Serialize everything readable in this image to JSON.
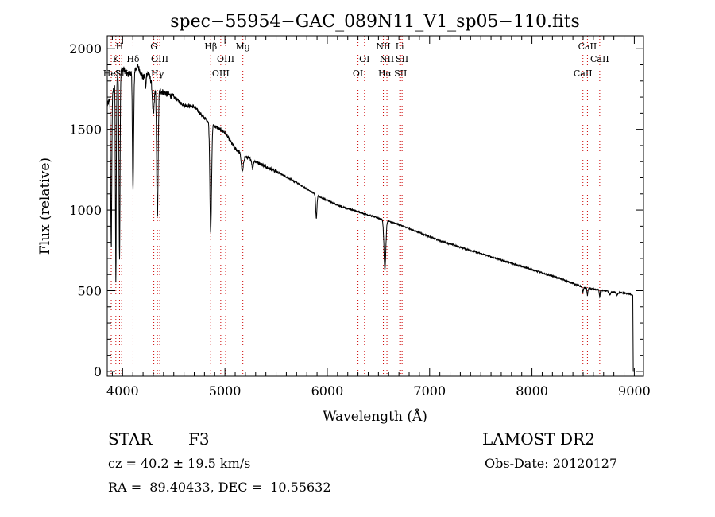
{
  "chart_data": {
    "type": "line",
    "title": "spec−55954−GAC_089N11_V1_sp05−110.fits",
    "xlabel": "Wavelength (Å)",
    "ylabel": "Flux (relative)",
    "xlim": [
      3850,
      9090
    ],
    "ylim": [
      -30,
      2080
    ],
    "xticks": [
      4000,
      5000,
      6000,
      7000,
      8000,
      9000
    ],
    "yticks": [
      0,
      500,
      1000,
      1500,
      2000
    ],
    "series_color": "#000000",
    "line_marker_color": "#cc0000",
    "continuum": [
      [
        3850,
        1650
      ],
      [
        3900,
        1720
      ],
      [
        3950,
        1830
      ],
      [
        4000,
        1880
      ],
      [
        4050,
        1840
      ],
      [
        4100,
        1860
      ],
      [
        4150,
        1890
      ],
      [
        4200,
        1820
      ],
      [
        4250,
        1850
      ],
      [
        4300,
        1760
      ],
      [
        4400,
        1730
      ],
      [
        4500,
        1700
      ],
      [
        4600,
        1650
      ],
      [
        4700,
        1640
      ],
      [
        4800,
        1570
      ],
      [
        4900,
        1520
      ],
      [
        5000,
        1480
      ],
      [
        5100,
        1380
      ],
      [
        5200,
        1330
      ],
      [
        5300,
        1300
      ],
      [
        5500,
        1240
      ],
      [
        5700,
        1170
      ],
      [
        5900,
        1090
      ],
      [
        6100,
        1030
      ],
      [
        6300,
        990
      ],
      [
        6500,
        950
      ],
      [
        6700,
        910
      ],
      [
        6900,
        860
      ],
      [
        7100,
        810
      ],
      [
        7300,
        770
      ],
      [
        7500,
        730
      ],
      [
        7700,
        690
      ],
      [
        7900,
        650
      ],
      [
        8100,
        610
      ],
      [
        8300,
        570
      ],
      [
        8500,
        520
      ],
      [
        8700,
        500
      ],
      [
        8950,
        480
      ],
      [
        8980,
        470
      ]
    ],
    "absorption_dips": [
      {
        "x": 3889,
        "depth": 0.55,
        "width": 5
      },
      {
        "x": 3934,
        "depth": 0.7,
        "width": 4
      },
      {
        "x": 3970,
        "depth": 0.62,
        "width": 5
      },
      {
        "x": 4102,
        "depth": 0.4,
        "width": 6
      },
      {
        "x": 4226,
        "depth": 0.05,
        "width": 3
      },
      {
        "x": 4300,
        "depth": 0.1,
        "width": 8
      },
      {
        "x": 4340,
        "depth": 0.46,
        "width": 7
      },
      {
        "x": 4861,
        "depth": 0.44,
        "width": 8
      },
      {
        "x": 5170,
        "depth": 0.08,
        "width": 10
      },
      {
        "x": 5270,
        "depth": 0.04,
        "width": 6
      },
      {
        "x": 5893,
        "depth": 0.13,
        "width": 6
      },
      {
        "x": 6563,
        "depth": 0.33,
        "width": 9
      },
      {
        "x": 8498,
        "depth": 0.06,
        "width": 4
      },
      {
        "x": 8542,
        "depth": 0.09,
        "width": 4
      },
      {
        "x": 8662,
        "depth": 0.09,
        "width": 4
      },
      {
        "x": 8760,
        "depth": 0.04,
        "width": 10
      },
      {
        "x": 8830,
        "depth": 0.03,
        "width": 8
      }
    ],
    "end_drop": [
      [
        8985,
        470
      ],
      [
        8990,
        0
      ],
      [
        9000,
        0
      ]
    ],
    "line_markers": [
      {
        "wavelength": 3889,
        "label": "HeI",
        "row": 3
      },
      {
        "wavelength": 3934,
        "label": "K",
        "row": 2
      },
      {
        "wavelength": 3970,
        "label": "H",
        "row": 1
      },
      {
        "wavelength": 3991,
        "label": "SII",
        "row": 3
      },
      {
        "wavelength": 4102,
        "label": "Hδ",
        "row": 2
      },
      {
        "wavelength": 4305,
        "label": "G",
        "row": 1
      },
      {
        "wavelength": 4340,
        "label": "Hγ",
        "row": 3
      },
      {
        "wavelength": 4363,
        "label": "OIII",
        "row": 2
      },
      {
        "wavelength": 4861,
        "label": "Hβ",
        "row": 1
      },
      {
        "wavelength": 4959,
        "label": "OIII",
        "row": 3
      },
      {
        "wavelength": 5007,
        "label": "OIII",
        "row": 2
      },
      {
        "wavelength": 5175,
        "label": "Mg",
        "row": 1
      },
      {
        "wavelength": 6300,
        "label": "OI",
        "row": 3
      },
      {
        "wavelength": 6364,
        "label": "OI",
        "row": 2
      },
      {
        "wavelength": 6548,
        "label": "NII",
        "row": 1
      },
      {
        "wavelength": 6563,
        "label": "Hα",
        "row": 3
      },
      {
        "wavelength": 6583,
        "label": "NII",
        "row": 2
      },
      {
        "wavelength": 6708,
        "label": "Li",
        "row": 1
      },
      {
        "wavelength": 6716,
        "label": "SII",
        "row": 3
      },
      {
        "wavelength": 6731,
        "label": "SII",
        "row": 2
      },
      {
        "wavelength": 8498,
        "label": "CaII",
        "row": 3
      },
      {
        "wavelength": 8542,
        "label": "CaII",
        "row": 1
      },
      {
        "wavelength": 8662,
        "label": "CaII",
        "row": 2
      }
    ]
  },
  "info": {
    "object_type": "STAR",
    "spectral_class": "F3",
    "survey": "LAMOST DR2",
    "redshift": "cz = 40.2 ± 19.5 km/s",
    "obs_date": "Obs-Date: 20120127",
    "coordinates": "RA =  89.40433, DEC =  10.55632"
  }
}
